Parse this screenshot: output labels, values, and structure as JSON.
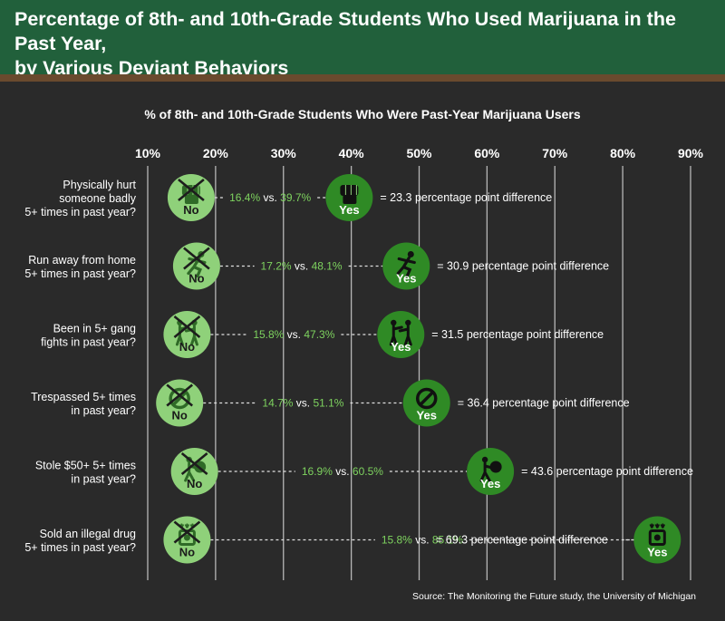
{
  "title": {
    "line1": "Percentage of 8th- and 10th-Grade Students Who Used Marijuana in the Past Year,",
    "line2": "by Various Deviant Behaviors"
  },
  "source": "Source: The Monitoring the Future study, the University of Michigan",
  "colors": {
    "header": "#21603b",
    "no_circle": "#8fd17a",
    "yes_circle": "#2f8a25",
    "value_green": "#7ed35f",
    "text": "#ffffff"
  },
  "chart_data": {
    "type": "dot",
    "xlabel": "% of 8th- and 10th-Grade Students Who Were Past-Year Marijuana Users",
    "xlim": [
      10,
      90
    ],
    "xticks": [
      "10%",
      "20%",
      "30%",
      "40%",
      "50%",
      "60%",
      "70%",
      "80%",
      "90%"
    ],
    "xtick_values": [
      10,
      20,
      30,
      40,
      50,
      60,
      70,
      80,
      90
    ],
    "grid": true,
    "no_label": "No",
    "yes_label": "Yes",
    "vs_label": "vs.",
    "diff_suffix": "percentage point difference",
    "series": [
      {
        "name": "No",
        "color": "#8fd17a"
      },
      {
        "name": "Yes",
        "color": "#2f8a25"
      }
    ],
    "rows": [
      {
        "label": [
          "Physically hurt",
          "someone badly",
          "5+ times in past year?"
        ],
        "no": 16.4,
        "yes": 39.7,
        "no_text": "16.4%",
        "yes_text": "39.7%",
        "diff": "= 23.3 percentage point difference",
        "icon": "fist-icon"
      },
      {
        "label": [
          "Run away from home",
          "5+ times in past year?"
        ],
        "no": 17.2,
        "yes": 48.1,
        "no_text": "17.2%",
        "yes_text": "48.1%",
        "diff": "= 30.9 percentage point difference",
        "icon": "running-person-icon"
      },
      {
        "label": [
          "Been in 5+ gang",
          "fights in past year?"
        ],
        "no": 15.8,
        "yes": 47.3,
        "no_text": "15.8%",
        "yes_text": "47.3%",
        "diff": "= 31.5 percentage point difference",
        "icon": "fighting-people-icon"
      },
      {
        "label": [
          "Trespassed 5+ times",
          "in past year?"
        ],
        "no": 14.7,
        "yes": 51.1,
        "no_text": "14.7%",
        "yes_text": "51.1%",
        "diff": "= 36.4 percentage point difference",
        "icon": "no-entry-icon"
      },
      {
        "label": [
          "Stole $50+ 5+ times",
          "in past year?"
        ],
        "no": 16.9,
        "yes": 60.5,
        "no_text": "16.9%",
        "yes_text": "60.5%",
        "diff": "= 43.6 percentage point difference",
        "icon": "thief-icon"
      },
      {
        "label": [
          "Sold an illegal drug",
          "5+ times in past year?"
        ],
        "no": 15.8,
        "yes": 85.1,
        "no_text": "15.8%",
        "yes_text": "85.1%",
        "diff": "= 69.3 percentage point difference",
        "icon": "drug-jar-icon"
      }
    ]
  }
}
